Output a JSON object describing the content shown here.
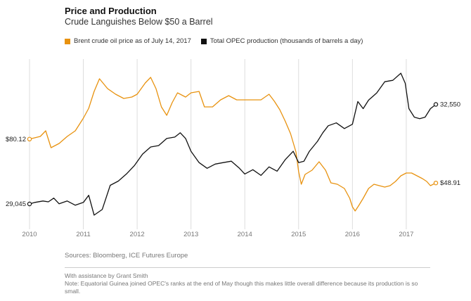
{
  "header": {
    "title": "Price and Production",
    "subtitle": "Crude Languishes Below $50 a Barrel"
  },
  "chart_data": {
    "type": "line",
    "title": "Price and Production",
    "subtitle": "Crude Languishes Below $50 a Barrel",
    "x_ticks": [
      "2010",
      "2011",
      "2012",
      "2013",
      "2014",
      "2015",
      "2016",
      "2017"
    ],
    "x_range": [
      2010.0,
      2017.55
    ],
    "grid": "vertical",
    "legend_placement": "top-left",
    "series": [
      {
        "name": "Brent crude oil price as of July 14, 2017",
        "color": "#E8920F",
        "start_label": "$80.12",
        "end_label": "$48.91",
        "y_range": [
          25,
          130
        ],
        "points": [
          [
            2010.0,
            80.1
          ],
          [
            2010.2,
            82
          ],
          [
            2010.3,
            86
          ],
          [
            2010.4,
            74
          ],
          [
            2010.55,
            77
          ],
          [
            2010.7,
            82
          ],
          [
            2010.85,
            86
          ],
          [
            2011.0,
            95
          ],
          [
            2011.1,
            102
          ],
          [
            2011.2,
            114
          ],
          [
            2011.3,
            123
          ],
          [
            2011.45,
            116
          ],
          [
            2011.6,
            112
          ],
          [
            2011.75,
            109
          ],
          [
            2011.9,
            110
          ],
          [
            2012.0,
            112
          ],
          [
            2012.15,
            120
          ],
          [
            2012.25,
            124
          ],
          [
            2012.35,
            116
          ],
          [
            2012.45,
            103
          ],
          [
            2012.55,
            97
          ],
          [
            2012.65,
            106
          ],
          [
            2012.75,
            113
          ],
          [
            2012.9,
            110
          ],
          [
            2013.0,
            113
          ],
          [
            2013.15,
            114
          ],
          [
            2013.25,
            103
          ],
          [
            2013.4,
            103
          ],
          [
            2013.55,
            108
          ],
          [
            2013.7,
            111
          ],
          [
            2013.85,
            108
          ],
          [
            2014.0,
            108
          ],
          [
            2014.15,
            108
          ],
          [
            2014.3,
            108
          ],
          [
            2014.45,
            112
          ],
          [
            2014.55,
            107
          ],
          [
            2014.65,
            101
          ],
          [
            2014.75,
            93
          ],
          [
            2014.85,
            84
          ],
          [
            2014.95,
            71
          ],
          [
            2015.0,
            57
          ],
          [
            2015.05,
            48
          ],
          [
            2015.12,
            55
          ],
          [
            2015.25,
            58
          ],
          [
            2015.38,
            64
          ],
          [
            2015.5,
            58
          ],
          [
            2015.6,
            49
          ],
          [
            2015.72,
            48
          ],
          [
            2015.85,
            45
          ],
          [
            2015.95,
            38
          ],
          [
            2016.0,
            32
          ],
          [
            2016.05,
            29
          ],
          [
            2016.12,
            33
          ],
          [
            2016.2,
            38
          ],
          [
            2016.3,
            45
          ],
          [
            2016.4,
            48
          ],
          [
            2016.5,
            47
          ],
          [
            2016.6,
            46
          ],
          [
            2016.7,
            47
          ],
          [
            2016.8,
            50
          ],
          [
            2016.9,
            54
          ],
          [
            2017.0,
            56
          ],
          [
            2017.1,
            56
          ],
          [
            2017.2,
            54
          ],
          [
            2017.3,
            52
          ],
          [
            2017.38,
            50
          ],
          [
            2017.45,
            47
          ],
          [
            2017.55,
            48.9
          ]
        ]
      },
      {
        "name": "Total OPEC production (thousands of barrels a day)",
        "color": "#111111",
        "start_label": "29,045",
        "end_label": "32,550",
        "y_range": [
          28500,
          33800
        ],
        "points": [
          [
            2010.0,
            29045
          ],
          [
            2010.1,
            29100
          ],
          [
            2010.25,
            29150
          ],
          [
            2010.35,
            29120
          ],
          [
            2010.45,
            29250
          ],
          [
            2010.55,
            29050
          ],
          [
            2010.7,
            29150
          ],
          [
            2010.85,
            29000
          ],
          [
            2011.0,
            29100
          ],
          [
            2011.1,
            29350
          ],
          [
            2011.2,
            28650
          ],
          [
            2011.35,
            28850
          ],
          [
            2011.5,
            29700
          ],
          [
            2011.65,
            29850
          ],
          [
            2011.8,
            30100
          ],
          [
            2011.95,
            30400
          ],
          [
            2012.1,
            30800
          ],
          [
            2012.25,
            31050
          ],
          [
            2012.4,
            31100
          ],
          [
            2012.55,
            31350
          ],
          [
            2012.7,
            31400
          ],
          [
            2012.8,
            31550
          ],
          [
            2012.9,
            31350
          ],
          [
            2013.0,
            30900
          ],
          [
            2013.15,
            30500
          ],
          [
            2013.3,
            30300
          ],
          [
            2013.45,
            30450
          ],
          [
            2013.6,
            30500
          ],
          [
            2013.75,
            30550
          ],
          [
            2013.9,
            30300
          ],
          [
            2014.0,
            30100
          ],
          [
            2014.15,
            30250
          ],
          [
            2014.3,
            30050
          ],
          [
            2014.45,
            30350
          ],
          [
            2014.6,
            30200
          ],
          [
            2014.75,
            30600
          ],
          [
            2014.9,
            30900
          ],
          [
            2015.0,
            30500
          ],
          [
            2015.1,
            30550
          ],
          [
            2015.2,
            30900
          ],
          [
            2015.35,
            31250
          ],
          [
            2015.45,
            31550
          ],
          [
            2015.55,
            31800
          ],
          [
            2015.7,
            31900
          ],
          [
            2015.85,
            31700
          ],
          [
            2016.0,
            31850
          ],
          [
            2016.1,
            32650
          ],
          [
            2016.2,
            32400
          ],
          [
            2016.3,
            32700
          ],
          [
            2016.45,
            32950
          ],
          [
            2016.6,
            33350
          ],
          [
            2016.75,
            33400
          ],
          [
            2016.9,
            33650
          ],
          [
            2016.98,
            33300
          ],
          [
            2017.05,
            32400
          ],
          [
            2017.15,
            32100
          ],
          [
            2017.25,
            32050
          ],
          [
            2017.35,
            32100
          ],
          [
            2017.45,
            32400
          ],
          [
            2017.55,
            32550
          ]
        ]
      }
    ]
  },
  "footer": {
    "sources": "Sources: Bloomberg, ICE Futures Europe",
    "assistance": "With assistance by Grant Smith",
    "note": "Note: Equatorial Guinea joined OPEC's ranks at the end of May though this makes little overall difference because its production is so small."
  }
}
